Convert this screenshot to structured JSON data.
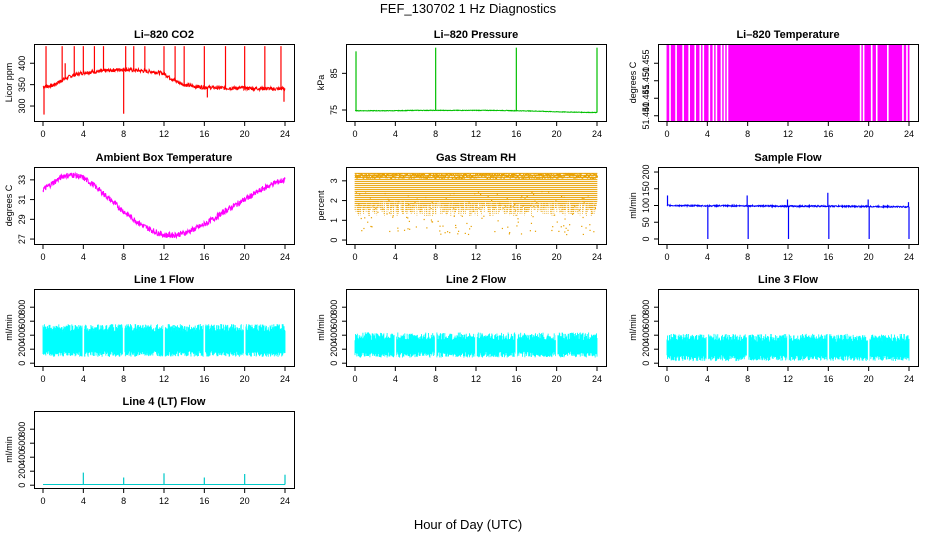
{
  "figure": {
    "title": "FEF_130702  1 Hz Diagnostics",
    "xlabel": "Hour of Day (UTC)"
  },
  "chart_data": [
    {
      "id": "co2",
      "type": "line",
      "title": "Li–820 CO2",
      "ylabel": "Licor ppm",
      "color": "#ff0000",
      "xlim": [
        0,
        24
      ],
      "ylim": [
        265,
        445
      ],
      "xticks": [
        "0",
        "4",
        "8",
        "12",
        "16",
        "20",
        "24"
      ],
      "yticks": [
        "300",
        "350",
        "400"
      ],
      "series": [
        {
          "x": [
            0,
            1,
            2,
            3,
            4,
            5,
            6,
            7,
            8,
            9,
            10,
            11,
            12,
            13,
            14,
            15,
            16,
            17,
            18,
            19,
            20,
            21,
            22,
            23,
            24
          ],
          "y": [
            345,
            348,
            362,
            372,
            378,
            380,
            382,
            384,
            386,
            384,
            382,
            380,
            376,
            360,
            350,
            346,
            344,
            343,
            342,
            342,
            342,
            341,
            341,
            340,
            341
          ]
        }
      ],
      "noise": 9,
      "spikes": [
        [
          0.1,
          280
        ],
        [
          0.3,
          440
        ],
        [
          1.9,
          440
        ],
        [
          2.2,
          400
        ],
        [
          3.1,
          440
        ],
        [
          4.0,
          440
        ],
        [
          5.1,
          440
        ],
        [
          6.0,
          440
        ],
        [
          8.0,
          282
        ],
        [
          8.2,
          440
        ],
        [
          9.0,
          440
        ],
        [
          10.1,
          440
        ],
        [
          12.0,
          440
        ],
        [
          13.1,
          440
        ],
        [
          14.0,
          440
        ],
        [
          16.0,
          440
        ],
        [
          16.3,
          320
        ],
        [
          18.1,
          440
        ],
        [
          20.0,
          440
        ],
        [
          22.0,
          440
        ],
        [
          23.6,
          440
        ],
        [
          23.9,
          310
        ]
      ]
    },
    {
      "id": "pressure",
      "type": "line",
      "title": "Li–820 Pressure",
      "ylabel": "kPa",
      "color": "#00c000",
      "xlim": [
        0,
        24
      ],
      "ylim": [
        72,
        93
      ],
      "xticks": [
        "0",
        "4",
        "8",
        "12",
        "16",
        "20",
        "24"
      ],
      "yticks": [
        "75",
        "85"
      ],
      "series": [
        {
          "x": [
            0,
            2,
            4,
            6,
            8,
            10,
            12,
            14,
            16,
            18,
            20,
            22,
            24
          ],
          "y": [
            74.8,
            74.8,
            74.8,
            74.9,
            74.9,
            74.9,
            74.9,
            74.9,
            74.8,
            74.7,
            74.5,
            74.4,
            74.3
          ]
        }
      ],
      "noise": 0.15,
      "spikes": [
        [
          0.1,
          91
        ],
        [
          8.0,
          92
        ],
        [
          16.0,
          92
        ],
        [
          24.0,
          92
        ]
      ]
    },
    {
      "id": "licor-temp",
      "type": "area",
      "title": "Li–820 Temperature",
      "ylabel": "degrees C",
      "color": "#ff00ff",
      "xlim": [
        0,
        24
      ],
      "ylim": [
        51.4385,
        51.4605
      ],
      "xticks": [
        "0",
        "4",
        "8",
        "12",
        "16",
        "20",
        "24"
      ],
      "yticks": [
        "51.440",
        "51.445",
        "51.450",
        "51.455"
      ],
      "band": [
        51.4385,
        51.4605
      ],
      "gaps": [
        0.3,
        0.9,
        1.6,
        2.2,
        2.8,
        3.3,
        3.6,
        4.2,
        4.6,
        4.9,
        5.4,
        5.7,
        6.0,
        19.2,
        19.5,
        20.3,
        20.8,
        21.9,
        23.4,
        23.8
      ]
    },
    {
      "id": "box-temp",
      "type": "line",
      "title": "Ambient Box Temperature",
      "ylabel": "degrees C",
      "color": "#ff00ff",
      "xlim": [
        0,
        24
      ],
      "ylim": [
        26.5,
        34.3
      ],
      "xticks": [
        "0",
        "4",
        "8",
        "12",
        "16",
        "20",
        "24"
      ],
      "yticks": [
        "27",
        "29",
        "31",
        "33"
      ],
      "series": [
        {
          "x": [
            0,
            1,
            2,
            3,
            4,
            5,
            6,
            7,
            8,
            9,
            10,
            11,
            12,
            13,
            14,
            15,
            16,
            17,
            18,
            19,
            20,
            21,
            22,
            23,
            24
          ],
          "y": [
            32.0,
            32.7,
            33.4,
            33.5,
            33.2,
            32.5,
            31.6,
            30.7,
            29.8,
            29.0,
            28.3,
            27.8,
            27.4,
            27.4,
            27.6,
            28.0,
            28.5,
            29.1,
            29.8,
            30.4,
            31.0,
            31.6,
            32.2,
            32.7,
            33.0
          ]
        }
      ],
      "noise": 0.6
    },
    {
      "id": "rh",
      "type": "scatter",
      "title": "Gas Stream RH",
      "ylabel": "percent",
      "color": "#e8a000",
      "xlim": [
        0,
        24
      ],
      "ylim": [
        -0.2,
        3.7
      ],
      "xticks": [
        "0",
        "4",
        "8",
        "12",
        "16",
        "20",
        "24"
      ],
      "yticks": [
        "0",
        "1",
        "2",
        "3"
      ],
      "band": [
        0.3,
        3.4
      ]
    },
    {
      "id": "sample-flow",
      "type": "line",
      "title": "Sample Flow",
      "ylabel": "ml/min",
      "color": "#0000ff",
      "xlim": [
        0,
        24
      ],
      "ylim": [
        -15,
        215
      ],
      "xticks": [
        "0",
        "4",
        "8",
        "12",
        "16",
        "20",
        "24"
      ],
      "yticks": [
        "0",
        "50",
        "100",
        "150",
        "200"
      ],
      "series": [
        {
          "x": [
            0,
            4,
            8,
            12,
            16,
            20,
            24
          ],
          "y": [
            100,
            99,
            99,
            98,
            98,
            97,
            96
          ]
        }
      ],
      "noise": 4,
      "spikes": [
        [
          0.05,
          130
        ],
        [
          4.05,
          0
        ],
        [
          7.95,
          130
        ],
        [
          8.05,
          0
        ],
        [
          11.95,
          118
        ],
        [
          12.05,
          0
        ],
        [
          15.95,
          138
        ],
        [
          16.05,
          0
        ],
        [
          19.95,
          118
        ],
        [
          20.05,
          0
        ],
        [
          23.95,
          110
        ],
        [
          24.0,
          0
        ]
      ]
    },
    {
      "id": "line1",
      "type": "area",
      "title": "Line 1 Flow",
      "ylabel": "ml/min",
      "color": "#00ffff",
      "xlim": [
        0,
        24
      ],
      "ylim": [
        -40,
        1060
      ],
      "xticks": [
        "0",
        "4",
        "8",
        "12",
        "16",
        "20",
        "24"
      ],
      "yticks": [
        "0",
        "200",
        "400",
        "600",
        "800"
      ],
      "band": [
        90,
        560
      ],
      "gaps": [
        4.0,
        8.0,
        12.0,
        16.0,
        20.0
      ]
    },
    {
      "id": "line2",
      "type": "area",
      "title": "Line 2 Flow",
      "ylabel": "ml/min",
      "color": "#00ffff",
      "xlim": [
        0,
        24
      ],
      "ylim": [
        -40,
        1060
      ],
      "xticks": [
        "0",
        "4",
        "8",
        "12",
        "16",
        "20",
        "24"
      ],
      "yticks": [
        "0",
        "200",
        "400",
        "600",
        "800"
      ],
      "band": [
        80,
        440
      ],
      "gaps": [
        4.0,
        8.0,
        12.0,
        16.0,
        20.0
      ]
    },
    {
      "id": "line3",
      "type": "area",
      "title": "Line 3 Flow",
      "ylabel": "ml/min",
      "color": "#00ffff",
      "xlim": [
        0,
        24
      ],
      "ylim": [
        -40,
        1060
      ],
      "xticks": [
        "0",
        "4",
        "8",
        "12",
        "16",
        "20",
        "24"
      ],
      "yticks": [
        "0",
        "200",
        "400",
        "600",
        "800"
      ],
      "band": [
        30,
        420
      ],
      "gaps": [
        4.0,
        8.0,
        12.0,
        16.0,
        20.0
      ]
    },
    {
      "id": "line4",
      "type": "line",
      "title": "Line 4 (LT) Flow",
      "ylabel": "ml/min",
      "color": "#00c8c8",
      "xlim": [
        0,
        24
      ],
      "ylim": [
        -40,
        1060
      ],
      "xticks": [
        "0",
        "4",
        "8",
        "12",
        "16",
        "20",
        "24"
      ],
      "yticks": [
        "0",
        "200",
        "400",
        "600",
        "800"
      ],
      "series": [
        {
          "x": [
            0,
            24
          ],
          "y": [
            10,
            10
          ]
        }
      ],
      "noise": 0,
      "spikes": [
        [
          4.0,
          180
        ],
        [
          8.0,
          110
        ],
        [
          12.0,
          170
        ],
        [
          16.0,
          110
        ],
        [
          20.0,
          160
        ],
        [
          24.0,
          150
        ]
      ]
    }
  ]
}
